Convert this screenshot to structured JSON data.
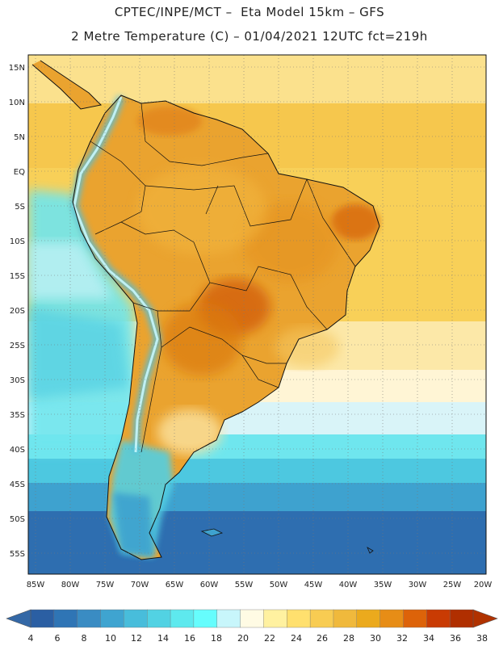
{
  "header": {
    "line1": "CPTEC/INPE/MCT –  Eta Model 15km – GFS",
    "line2": "2 Metre Temperature (C) – 01/04/2021 12UTC fct=219h"
  },
  "map": {
    "lat_labels": [
      "15N",
      "10N",
      "5N",
      "EQ",
      "5S",
      "10S",
      "15S",
      "20S",
      "25S",
      "30S",
      "35S",
      "40S",
      "45S",
      "50S",
      "55S"
    ],
    "lon_labels": [
      "85W",
      "80W",
      "75W",
      "70W",
      "65W",
      "60W",
      "55W",
      "50W",
      "45W",
      "40W",
      "35W",
      "30W",
      "25W",
      "20W"
    ],
    "lat_range": [
      17,
      -58
    ],
    "lon_range": [
      -86,
      -20
    ]
  },
  "legend": {
    "labels": [
      "4",
      "6",
      "8",
      "10",
      "12",
      "14",
      "16",
      "18",
      "20",
      "22",
      "24",
      "26",
      "28",
      "30",
      "32",
      "34",
      "36",
      "38"
    ],
    "colors": [
      "#2b5fa3",
      "#2f75b5",
      "#3a8cc3",
      "#3fa4d0",
      "#48bddb",
      "#52d2e3",
      "#5ee9ee",
      "#66fdfd",
      "#c8f6fb",
      "#fffbe4",
      "#fff1a0",
      "#ffe06e",
      "#f8cc52",
      "#f0b93c",
      "#ebaa1d",
      "#e78d16",
      "#dd6309",
      "#c93b03",
      "#b02f00"
    ],
    "cap_left": "#3468a6",
    "cap_right": "#b03200"
  }
}
